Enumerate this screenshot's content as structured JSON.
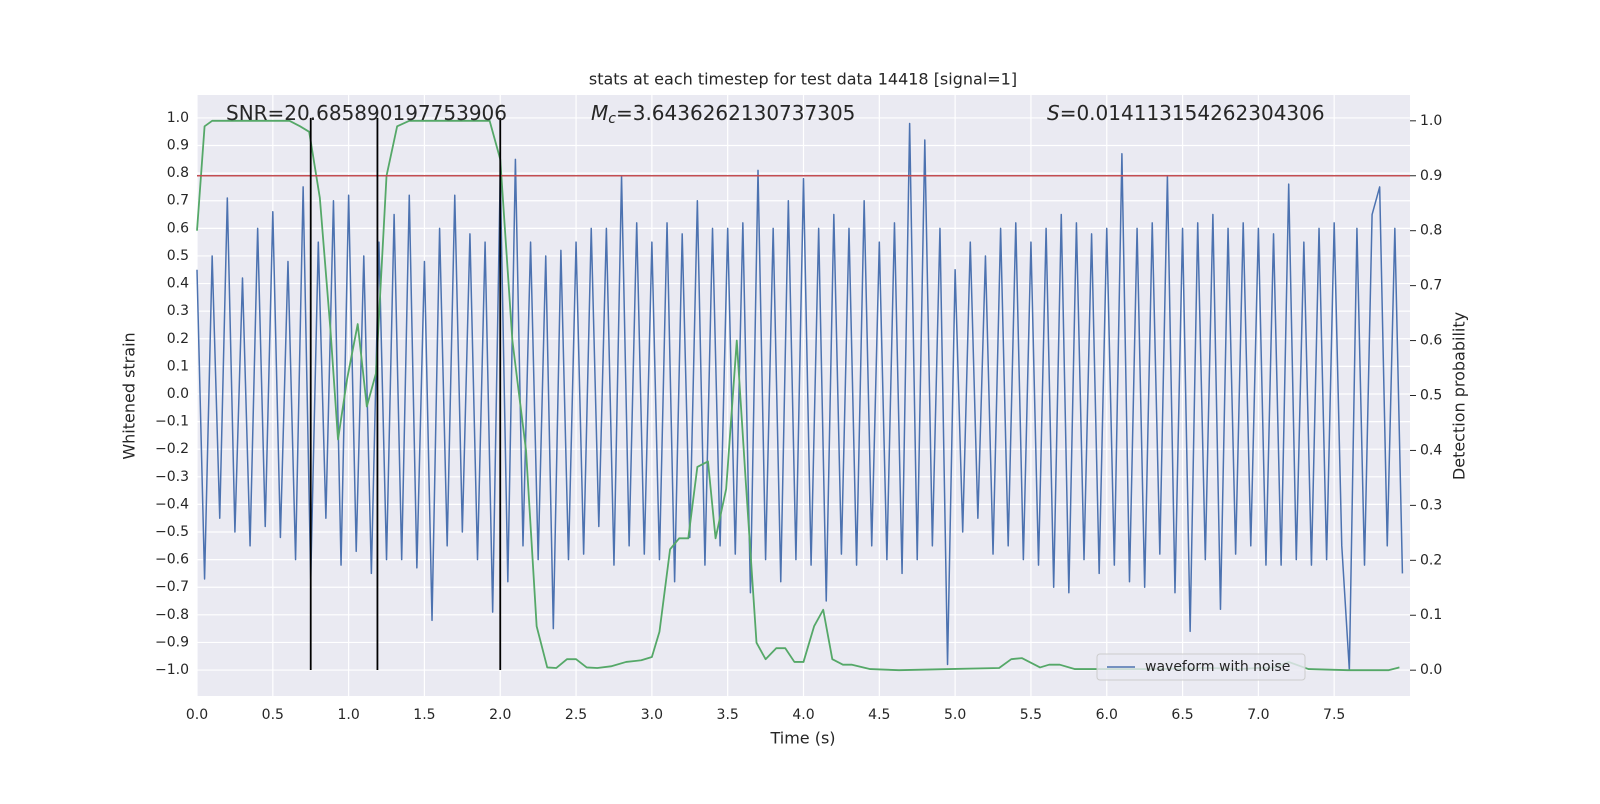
{
  "chart_data": {
    "type": "line",
    "title": "stats at each timestep for test data 14418 [signal=1]",
    "xlabel": "Time (s)",
    "ylabel": "Whitened strain",
    "y2label": "Detection probability",
    "annotations": [
      {
        "text": "SNR=20.685890197753906"
      },
      {
        "symbol": "M",
        "subscript": "c",
        "text": "=3.6436262130737305"
      },
      {
        "symbol": "S",
        "text": "=0.014113154262304306"
      }
    ],
    "xlim": [
      0,
      8.0
    ],
    "ylim": [
      -1.094,
      1.083
    ],
    "y2lim": [
      -0.047,
      1.047
    ],
    "xticks": [
      {
        "value": 0,
        "label": "0.0"
      },
      0.5,
      {
        "value": 1,
        "label": "1.0"
      },
      1.5,
      {
        "value": 2,
        "label": "2.0"
      },
      2.5,
      {
        "value": 3,
        "label": "3.0"
      },
      3.5,
      {
        "value": 4,
        "label": "4.0"
      },
      4.5,
      {
        "value": 5,
        "label": "5.0"
      },
      5.5,
      {
        "value": 6,
        "label": "6.0"
      },
      6.5,
      {
        "value": 7,
        "label": "7.0"
      },
      7.5
    ],
    "yticks": [
      {
        "value": -1,
        "label": "−1.0"
      },
      {
        "value": -0.9,
        "label": "−0.9"
      },
      {
        "value": -0.8,
        "label": "−0.8"
      },
      {
        "value": -0.7,
        "label": "−0.7"
      },
      {
        "value": -0.6,
        "label": "−0.6"
      },
      {
        "value": -0.5,
        "label": "−0.5"
      },
      {
        "value": -0.4,
        "label": "−0.4"
      },
      {
        "value": -0.3,
        "label": "−0.3"
      },
      {
        "value": -0.2,
        "label": "−0.2"
      },
      {
        "value": -0.1,
        "label": "−0.1"
      },
      {
        "value": 0,
        "label": "0.0"
      },
      0.1,
      0.2,
      0.3,
      0.4,
      0.5,
      0.6,
      0.7,
      0.8,
      0.9,
      {
        "value": 1,
        "label": "1.0"
      }
    ],
    "y2ticks": [
      {
        "value": 0,
        "label": "0.0"
      },
      0.1,
      0.2,
      0.3,
      0.4,
      0.5,
      0.6,
      0.7,
      0.8,
      0.9,
      {
        "value": 1,
        "label": "1.0"
      }
    ],
    "grid": true,
    "legend": "lower right",
    "series": [
      {
        "name": "waveform with noise",
        "color": "#4c72b0",
        "x": [
          0,
          0.05,
          0.1,
          0.15,
          0.2,
          0.25,
          0.3,
          0.35,
          0.4,
          0.45,
          0.5,
          0.55,
          0.6,
          0.65,
          0.7,
          0.75,
          0.8,
          0.85,
          0.9,
          0.95,
          1.0,
          1.05,
          1.1,
          1.15,
          1.2,
          1.25,
          1.3,
          1.35,
          1.4,
          1.45,
          1.5,
          1.55,
          1.6,
          1.65,
          1.7,
          1.75,
          1.8,
          1.85,
          1.9,
          1.95,
          2.0,
          2.05,
          2.1,
          2.15,
          2.2,
          2.25,
          2.3,
          2.35,
          2.4,
          2.45,
          2.5,
          2.55,
          2.6,
          2.65,
          2.7,
          2.75,
          2.8,
          2.85,
          2.9,
          2.95,
          3.0,
          3.05,
          3.1,
          3.15,
          3.2,
          3.25,
          3.3,
          3.35,
          3.4,
          3.45,
          3.5,
          3.55,
          3.6,
          3.65,
          3.7,
          3.75,
          3.8,
          3.85,
          3.9,
          3.95,
          4.0,
          4.05,
          4.1,
          4.15,
          4.2,
          4.25,
          4.3,
          4.35,
          4.4,
          4.45,
          4.5,
          4.55,
          4.6,
          4.65,
          4.7,
          4.75,
          4.8,
          4.85,
          4.9,
          4.95,
          5.0,
          5.05,
          5.1,
          5.15,
          5.2,
          5.25,
          5.3,
          5.35,
          5.4,
          5.45,
          5.5,
          5.55,
          5.6,
          5.65,
          5.7,
          5.75,
          5.8,
          5.85,
          5.9,
          5.95,
          6.0,
          6.05,
          6.1,
          6.15,
          6.2,
          6.25,
          6.3,
          6.35,
          6.4,
          6.45,
          6.5,
          6.55,
          6.6,
          6.65,
          6.7,
          6.75,
          6.8,
          6.85,
          6.9,
          6.95,
          7.0,
          7.05,
          7.1,
          7.15,
          7.2,
          7.25,
          7.3,
          7.35,
          7.4,
          7.45,
          7.5,
          7.55,
          7.6,
          7.65,
          7.7,
          7.75,
          7.8,
          7.85,
          7.9,
          7.95
        ],
        "values": [
          0.45,
          -0.67,
          0.5,
          -0.45,
          0.71,
          -0.5,
          0.42,
          -0.55,
          0.6,
          -0.48,
          0.66,
          -0.52,
          0.48,
          -0.6,
          0.75,
          -0.67,
          0.55,
          -0.45,
          0.7,
          -0.62,
          0.72,
          -0.57,
          0.5,
          -0.65,
          0.55,
          -0.6,
          0.65,
          -0.6,
          0.72,
          -0.63,
          0.48,
          -0.82,
          0.6,
          -0.55,
          0.72,
          -0.5,
          0.58,
          -0.6,
          0.55,
          -0.79,
          0.8,
          -0.68,
          0.85,
          -0.55,
          0.55,
          -0.6,
          0.5,
          -0.85,
          0.52,
          -0.6,
          0.55,
          -0.58,
          0.6,
          -0.48,
          0.6,
          -0.62,
          0.79,
          -0.55,
          0.62,
          -0.58,
          0.55,
          -0.6,
          0.62,
          -0.68,
          0.58,
          -0.52,
          0.7,
          -0.62,
          0.6,
          -0.55,
          0.6,
          -0.58,
          0.62,
          -0.72,
          0.81,
          -0.6,
          0.6,
          -0.68,
          0.7,
          -0.6,
          0.78,
          -0.62,
          0.6,
          -0.75,
          0.65,
          -0.58,
          0.6,
          -0.62,
          0.7,
          -0.55,
          0.55,
          -0.6,
          0.62,
          -0.65,
          0.98,
          -0.6,
          0.92,
          -0.55,
          0.6,
          -0.98,
          0.45,
          -0.5,
          0.55,
          -0.45,
          0.5,
          -0.58,
          0.6,
          -0.55,
          0.62,
          -0.6,
          0.55,
          -0.62,
          0.6,
          -0.7,
          0.65,
          -0.72,
          0.62,
          -0.6,
          0.58,
          -0.65,
          0.6,
          -0.62,
          0.87,
          -0.68,
          0.6,
          -0.7,
          0.62,
          -0.58,
          0.79,
          -0.72,
          0.6,
          -0.86,
          0.62,
          -0.6,
          0.65,
          -0.78,
          0.6,
          -0.58,
          0.62,
          -0.55,
          0.6,
          -0.62,
          0.58,
          -0.62,
          0.76,
          -0.6,
          0.55,
          -0.62,
          0.6,
          -0.6,
          0.62,
          -0.55,
          -1.0,
          0.6,
          -0.62,
          0.65,
          0.75,
          -0.55,
          0.6,
          -0.65
        ]
      },
      {
        "color": "#55a868",
        "axis": "y2",
        "x": [
          0,
          0.05,
          0.1,
          0.61,
          0.68,
          0.74,
          0.81,
          0.88,
          0.93,
          0.99,
          1.06,
          1.12,
          1.18,
          1.25,
          1.32,
          1.4,
          1.93,
          2.0,
          2.08,
          2.17,
          2.24,
          2.31,
          2.37,
          2.44,
          2.5,
          2.57,
          2.64,
          2.73,
          2.83,
          2.93,
          3.0,
          3.05,
          3.12,
          3.18,
          3.24,
          3.3,
          3.37,
          3.42,
          3.49,
          3.56,
          3.62,
          3.69,
          3.75,
          3.82,
          3.88,
          3.94,
          4.0,
          4.07,
          4.13,
          4.19,
          4.26,
          4.32,
          4.44,
          4.63,
          4.96,
          5.29,
          5.37,
          5.44,
          5.56,
          5.62,
          5.69,
          5.79,
          6.28,
          6.68,
          6.87,
          7.0,
          7.1,
          7.2,
          7.25,
          7.33,
          7.59,
          7.86,
          7.93
        ],
        "values": [
          0.8,
          0.99,
          1.0,
          1.0,
          0.99,
          0.98,
          0.86,
          0.62,
          0.42,
          0.53,
          0.63,
          0.48,
          0.54,
          0.9,
          0.99,
          1.0,
          1.0,
          0.93,
          0.6,
          0.4,
          0.08,
          0.005,
          0.004,
          0.02,
          0.02,
          0.005,
          0.004,
          0.007,
          0.015,
          0.018,
          0.024,
          0.07,
          0.22,
          0.24,
          0.24,
          0.37,
          0.38,
          0.24,
          0.33,
          0.6,
          0.34,
          0.05,
          0.02,
          0.04,
          0.04,
          0.015,
          0.015,
          0.08,
          0.11,
          0.02,
          0.01,
          0.01,
          0.002,
          0.0,
          0.002,
          0.004,
          0.02,
          0.022,
          0.005,
          0.01,
          0.01,
          0.002,
          0.002,
          0.004,
          0.002,
          0.004,
          0.004,
          0.015,
          0.01,
          0.002,
          0.0,
          0.0,
          0.005
        ]
      }
    ],
    "hline": {
      "y": 0.9,
      "axis": "y2",
      "color": "#c44e52"
    },
    "vlines": {
      "x": [
        0.75,
        1.19,
        2.0
      ],
      "ymin": -1,
      "ymax": 1,
      "color": "#000000"
    }
  }
}
